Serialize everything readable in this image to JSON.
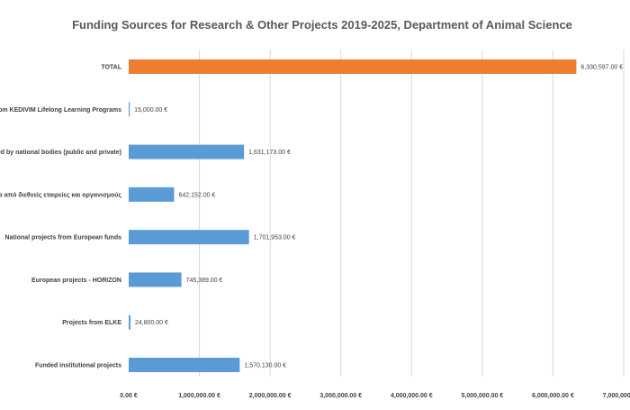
{
  "chart_data": {
    "type": "bar",
    "orientation": "horizontal",
    "title": "Funding Sources for Research & Other Projects 2019-2025, Department of Animal Science",
    "categories": [
      "TOTAL",
      "Projects from KEDIVIM Lifelong Learning Programs",
      "Projects funded by national bodies (public and private)",
      "Έργα από διεθνείς εταιρείες και οργανισμούς",
      "National projects from European funds",
      "European projects - HORIZON",
      "Projects from ELKE",
      "Funded institutional projects"
    ],
    "values": [
      6330597,
      15000,
      1631173,
      642152,
      1701953,
      745389,
      24800,
      1570130
    ],
    "value_labels": [
      "6,330,597.00 €",
      "15,000.00 €",
      "1,631,173.00 €",
      "642,152.00 €",
      "1,701,953.00 €",
      "745,389.00 €",
      "24,800.00 €",
      "1,570,130.00 €"
    ],
    "bar_colors": [
      "#ed7d31",
      "#5b9bd5",
      "#5b9bd5",
      "#5b9bd5",
      "#5b9bd5",
      "#5b9bd5",
      "#5b9bd5",
      "#5b9bd5"
    ],
    "xlim": [
      0,
      7000000
    ],
    "x_ticks": [
      0,
      1000000,
      2000000,
      3000000,
      4000000,
      5000000,
      6000000,
      7000000
    ],
    "x_tick_labels": [
      "0.00 €",
      "1,000,000.00 €",
      "2,000,000.00 €",
      "3,000,000.00 €",
      "4,000,000.00 €",
      "5,000,000.00 €",
      "6,000,000.00 €",
      "7,000,000.00 €"
    ],
    "grid": true,
    "legend": "none"
  }
}
